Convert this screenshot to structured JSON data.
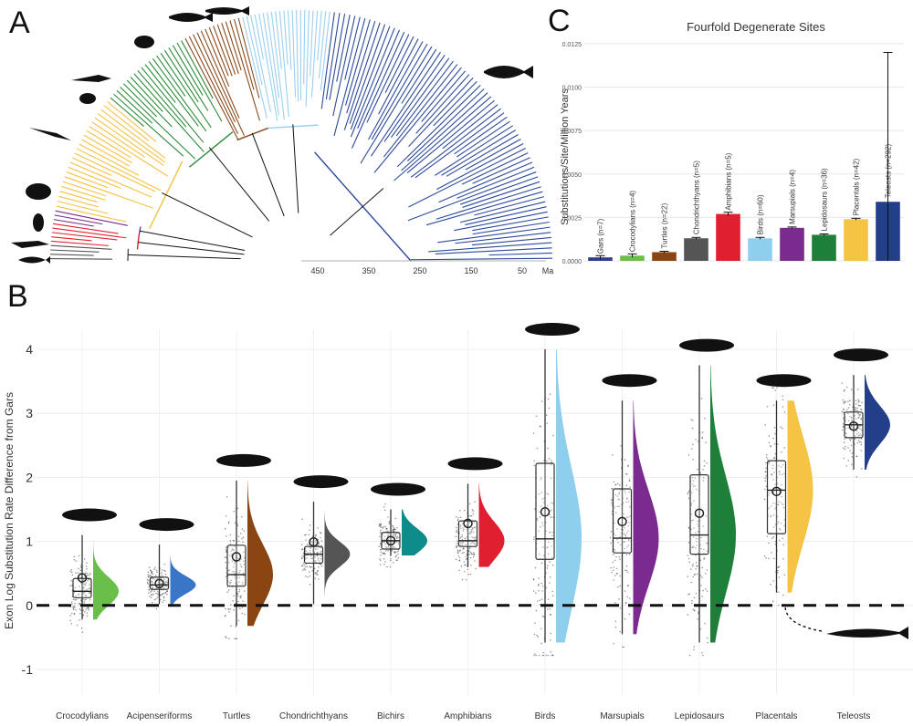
{
  "figure": {
    "panel_a_label": "A",
    "panel_b_label": "B",
    "panel_c_label": "C"
  },
  "panel_a": {
    "axis_ticks": [
      "450",
      "350",
      "250",
      "150",
      "50"
    ],
    "axis_unit": "Ma",
    "clade_colors": {
      "teleosts": "#2c4a9a",
      "light_blue": "#9ad0ee",
      "turtles": "#8a4a1e",
      "green": "#2e8b3a",
      "yellow": "#f5c242",
      "purple": "#7a2a8a",
      "red": "#e02030",
      "gray": "#555555"
    }
  },
  "chart_data": [
    {
      "panel": "C",
      "type": "bar",
      "title": "Fourfold Degenerate Sites",
      "ylabel": "Substitutions/Site/Million Years",
      "xlabel": "",
      "ylim": [
        0,
        0.0125
      ],
      "yticks": [
        "0.0000",
        "0.0025",
        "0.0050",
        "0.0075",
        "0.0100",
        "0.0125"
      ],
      "categories": [
        "Gars (n=7)",
        "Crocodylians (n=4)",
        "Turtles (n=22)",
        "Chondrichthyans (n=5)",
        "Amphibians (n=5)",
        "Birds (n=60)",
        "Marsupials (n=4)",
        "Lepidosaurs (n=36)",
        "Placentals (n=42)",
        "Teleosts (n=292)"
      ],
      "values": [
        0.0002,
        0.0003,
        0.0005,
        0.0013,
        0.0027,
        0.0013,
        0.0019,
        0.0015,
        0.0024,
        0.0034
      ],
      "errors": [
        0.0001,
        0.0001,
        5e-05,
        5e-05,
        0.0001,
        5e-05,
        5e-05,
        5e-05,
        5e-05,
        0.0086
      ],
      "colors": [
        "#2c3e8c",
        "#6abf4b",
        "#8b4513",
        "#555555",
        "#e02030",
        "#8fcfee",
        "#7b2a8f",
        "#1e7f3a",
        "#f6c445",
        "#233f8a"
      ]
    },
    {
      "panel": "B",
      "type": "scatter",
      "title": "",
      "ylabel": "Exon Log Substitution Rate Difference from Gars",
      "xlabel": "",
      "ylim": [
        -1.4,
        4.3
      ],
      "yticks": [
        "-1",
        "0",
        "1",
        "2",
        "3",
        "4"
      ],
      "categories": [
        "Crocodylians",
        "Acipenseriforms",
        "Turtles",
        "Chondrichthyans",
        "Bichirs",
        "Amphibians",
        "Birds",
        "Marsupials",
        "Lepidosaurs",
        "Placentals",
        "Teleosts"
      ],
      "medians": [
        0.22,
        0.32,
        0.48,
        0.8,
        1.01,
        1.01,
        1.04,
        1.05,
        1.1,
        1.8,
        2.82
      ],
      "q1": [
        0.12,
        0.25,
        0.3,
        0.66,
        0.88,
        0.92,
        0.72,
        0.82,
        0.8,
        1.12,
        2.62
      ],
      "q3": [
        0.42,
        0.44,
        0.94,
        0.92,
        1.14,
        1.32,
        2.22,
        1.82,
        2.04,
        2.26,
        3.02
      ],
      "whisker_low": [
        -0.22,
        0.02,
        -0.32,
        0.02,
        0.78,
        0.6,
        -0.58,
        -0.45,
        -0.58,
        0.2,
        2.12
      ],
      "whisker_high": [
        1.1,
        0.95,
        1.95,
        1.62,
        1.5,
        1.9,
        4.0,
        3.2,
        3.75,
        3.2,
        3.6
      ],
      "means": [
        0.43,
        0.34,
        0.76,
        0.99,
        1.01,
        1.28,
        1.46,
        1.31,
        1.44,
        1.78,
        2.8
      ],
      "colors": [
        "#6abf4b",
        "#3a76c8",
        "#8b4513",
        "#555555",
        "#0e8c8a",
        "#e02030",
        "#8fcfee",
        "#7b2a8f",
        "#1e7f3a",
        "#f6c445",
        "#233f8a"
      ]
    }
  ]
}
